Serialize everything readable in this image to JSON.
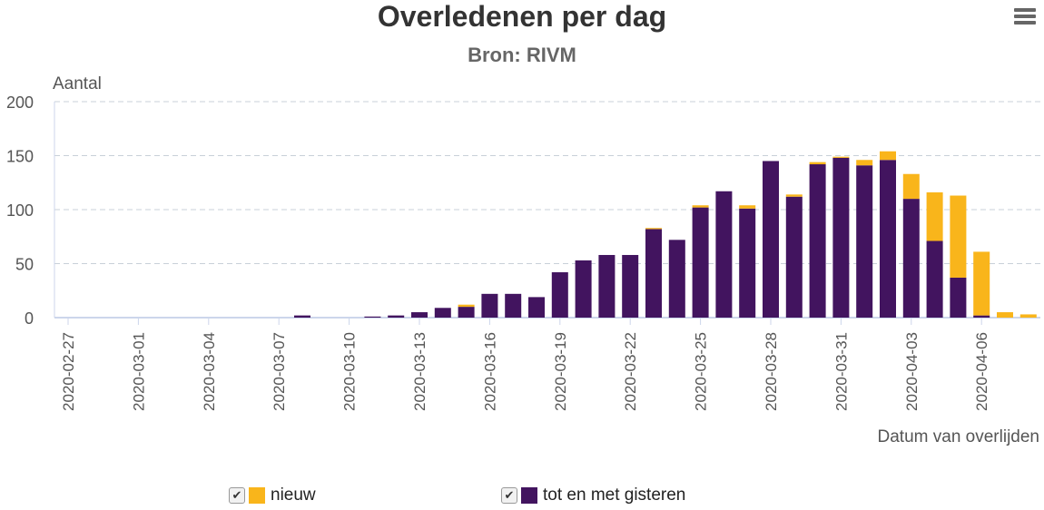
{
  "header": {
    "title": "Overledenen per dag",
    "subtitle": "Bron: RIVM",
    "menu_icon": "hamburger-menu-icon"
  },
  "colors": {
    "nieuw": "#F9B51B",
    "tot_en_met_gisteren": "#42145F",
    "grid": "#c8d0d8",
    "axis": "#ccd6eb"
  },
  "legend": [
    {
      "label": "nieuw",
      "checked": true
    },
    {
      "label": "tot en met gisteren",
      "checked": true
    }
  ],
  "chart_data": {
    "type": "bar",
    "stacked": true,
    "title": "Overledenen per dag",
    "subtitle": "Bron: RIVM",
    "ylabel": "Aantal",
    "xlabel": "Datum van overlijden",
    "ylim": [
      0,
      200
    ],
    "yticks": [
      0,
      50,
      100,
      150,
      200
    ],
    "grid": true,
    "legend_position": "bottom",
    "xtick_labels": [
      "2020-02-27",
      "2020-03-01",
      "2020-03-04",
      "2020-03-07",
      "2020-03-10",
      "2020-03-13",
      "2020-03-16",
      "2020-03-19",
      "2020-03-22",
      "2020-03-25",
      "2020-03-28",
      "2020-03-31",
      "2020-04-03",
      "2020-04-06"
    ],
    "categories": [
      "2020-02-27",
      "2020-02-28",
      "2020-02-29",
      "2020-03-01",
      "2020-03-02",
      "2020-03-03",
      "2020-03-04",
      "2020-03-05",
      "2020-03-06",
      "2020-03-07",
      "2020-03-08",
      "2020-03-09",
      "2020-03-10",
      "2020-03-11",
      "2020-03-12",
      "2020-03-13",
      "2020-03-14",
      "2020-03-15",
      "2020-03-16",
      "2020-03-17",
      "2020-03-18",
      "2020-03-19",
      "2020-03-20",
      "2020-03-21",
      "2020-03-22",
      "2020-03-23",
      "2020-03-24",
      "2020-03-25",
      "2020-03-26",
      "2020-03-27",
      "2020-03-28",
      "2020-03-29",
      "2020-03-30",
      "2020-03-31",
      "2020-04-01",
      "2020-04-02",
      "2020-04-03",
      "2020-04-04",
      "2020-04-05",
      "2020-04-06",
      "2020-04-07",
      "2020-04-08"
    ],
    "series": [
      {
        "name": "tot en met gisteren",
        "values": [
          0,
          0,
          0,
          0,
          0,
          0,
          0,
          0,
          0,
          0,
          2,
          0,
          0,
          1,
          2,
          5,
          9,
          10,
          22,
          22,
          19,
          42,
          53,
          58,
          58,
          82,
          72,
          102,
          117,
          101,
          145,
          112,
          142,
          148,
          141,
          146,
          110,
          71,
          37,
          2,
          0,
          0
        ]
      },
      {
        "name": "nieuw",
        "values": [
          0,
          0,
          0,
          0,
          0,
          0,
          0,
          0,
          0,
          0,
          0,
          0,
          0,
          0,
          0,
          0,
          0,
          2,
          0,
          0,
          0,
          0,
          0,
          0,
          0,
          1,
          0,
          2,
          0,
          3,
          0,
          2,
          2,
          1,
          5,
          8,
          23,
          45,
          76,
          59,
          5,
          3
        ]
      }
    ]
  }
}
